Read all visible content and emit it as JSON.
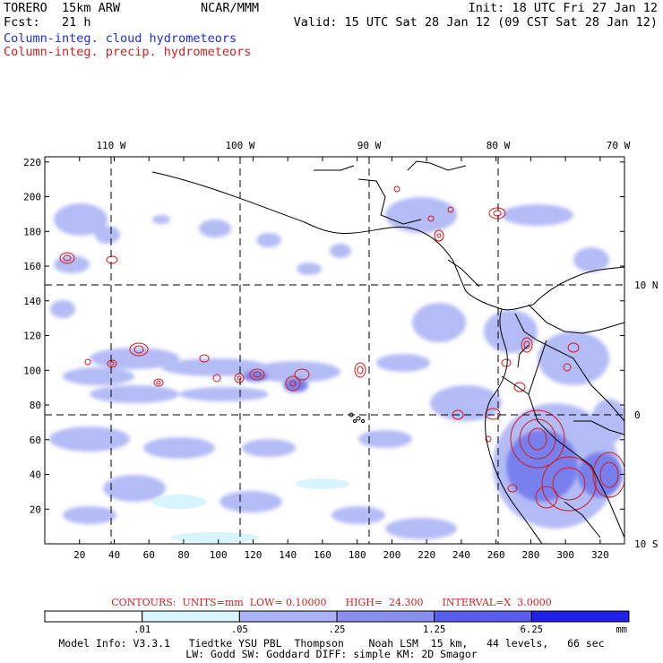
{
  "header": {
    "left_line1": "TORERO  15km ARW",
    "left_line2": "Fcst:   21 h",
    "center": "NCAR/MMM",
    "right_line1": "Init: 18 UTC Fri 27 Jan 12",
    "right_line2": "Valid: 15 UTC Sat 28 Jan 12 (09 CST Sat 28 Jan 12)"
  },
  "legend": {
    "cloud": "Column-integ. cloud hydrometeors",
    "precip": "Column-integ. precip. hydrometeors"
  },
  "map": {
    "lon_labels": [
      "110 W",
      "100 W",
      "90 W",
      "80 W",
      "70 W"
    ],
    "lat_labels": [
      "10 N",
      "0",
      "10 S"
    ],
    "x_ticks": [
      "20",
      "40",
      "60",
      "80",
      "100",
      "120",
      "140",
      "160",
      "180",
      "200",
      "220",
      "240",
      "260",
      "280",
      "300",
      "320"
    ],
    "y_ticks": [
      "20",
      "40",
      "60",
      "80",
      "100",
      "120",
      "140",
      "160",
      "180",
      "200",
      "220"
    ]
  },
  "contours_line": {
    "label": "CONTOURS:",
    "units": "UNITS=mm",
    "low": "LOW= 0.10000",
    "high": "HIGH=  24.300",
    "interval": "INTERVAL=X  3.0000"
  },
  "colorbar": {
    "labels": [
      ".01",
      ".05",
      ".25",
      "1.25",
      "6.25"
    ],
    "unit": "mm",
    "colors": [
      "#ffffff",
      "#d8f4fc",
      "#aab4f4",
      "#8a90f0",
      "#5a5ef0",
      "#2020e8"
    ]
  },
  "model_info": {
    "line1": "Model Info: V3.3.1   Tiedtke YSU PBL  Thompson    Noah LSM  15 km,   44 levels,   66 sec",
    "line2": "LW: Godd SW: Goddard DIFF: simple KM: 2D Smagor"
  }
}
